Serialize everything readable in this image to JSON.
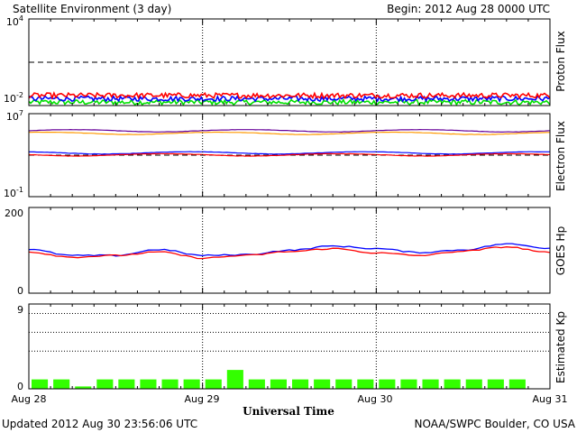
{
  "header": {
    "title": "Satellite Environment (3 day)",
    "begin": "Begin:  2012 Aug 28 0000 UTC"
  },
  "footer": {
    "updated": "Updated 2012 Aug 30 23:56:06 UTC",
    "credit": "NOAA/SWPC Boulder, CO USA"
  },
  "colors": {
    "red": "#ff0000",
    "blue": "#0000ff",
    "green": "#00e000",
    "orange": "#ff9900",
    "purple": "#660099",
    "kp_bar": "#33ff00"
  },
  "chart_data": [
    {
      "type": "line",
      "ylabel": "Proton Flux",
      "yscale": "log",
      "ylim": [
        0.01,
        10000
      ],
      "ytick_labels": {
        "top": "10",
        "top_exp": "4",
        "bottom": "10",
        "bottom_exp": "-2"
      },
      "threshold": 10,
      "grid": false,
      "series": [
        {
          "color": "#ff0000",
          "base": 0.05
        },
        {
          "color": "#0000ff",
          "base": 0.03
        },
        {
          "color": "#00e000",
          "base": 0.017
        }
      ]
    },
    {
      "type": "line",
      "ylabel": "Electron Flux",
      "yscale": "log",
      "ylim": [
        0.1,
        10000000
      ],
      "ytick_labels": {
        "top": "10",
        "top_exp": "7",
        "bottom": "10",
        "bottom_exp": "-1"
      },
      "threshold": 1000,
      "grid": false,
      "series": [
        {
          "color": "#660099",
          "level": 230000
        },
        {
          "color": "#ff9900",
          "level": 130000
        },
        {
          "color": "#0000ff",
          "level": 1700
        },
        {
          "color": "#ff0000",
          "level": 1100
        }
      ]
    },
    {
      "type": "line",
      "ylabel": "GOES Hp",
      "ylim": [
        0,
        200
      ],
      "ytick_labels": {
        "top": "200",
        "bottom": "0"
      },
      "grid": false,
      "series": [
        {
          "color": "#0000ff",
          "x": [
            0,
            6,
            12,
            18,
            24,
            30,
            36,
            42,
            48,
            54,
            60,
            66,
            72
          ],
          "y": [
            102,
            88,
            88,
            102,
            88,
            90,
            100,
            110,
            104,
            95,
            101,
            115,
            105
          ]
        },
        {
          "color": "#ff0000",
          "x": [
            0,
            6,
            12,
            18,
            24,
            30,
            36,
            42,
            48,
            54,
            60,
            66,
            72
          ],
          "y": [
            96,
            84,
            88,
            96,
            82,
            88,
            97,
            104,
            94,
            88,
            98,
            108,
            95
          ]
        }
      ]
    },
    {
      "type": "bar",
      "ylabel": "Estimated Kp",
      "ylim": [
        0,
        9
      ],
      "ytick_labels": {
        "top": "9",
        "bottom": "0"
      },
      "grid": true,
      "gridlines": [
        4,
        6,
        8
      ],
      "bar_width_hours": 3,
      "values": [
        1,
        1,
        0,
        1,
        1,
        1,
        1,
        1,
        1,
        2,
        1,
        1,
        1,
        1,
        1,
        1,
        1,
        1,
        1,
        1,
        1,
        1,
        1
      ]
    }
  ],
  "xaxis": {
    "label": "Universal Time",
    "ticks": [
      "Aug 28",
      "Aug 29",
      "Aug 30",
      "Aug 31"
    ],
    "range_hours": [
      0,
      72
    ]
  }
}
